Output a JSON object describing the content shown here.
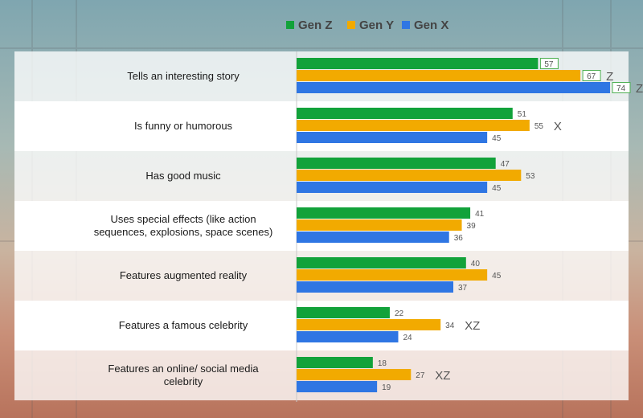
{
  "colors": {
    "gen_z": "#12a23a",
    "gen_y": "#f2aa00",
    "gen_x": "#2f76e3",
    "band": "#ffffff",
    "highlight_box": "#4caf50"
  },
  "chart_data": {
    "type": "bar",
    "orientation": "horizontal",
    "title": "",
    "xlabel": "",
    "ylabel": "",
    "xlim": [
      0,
      80
    ],
    "grid": false,
    "legend_position": "top-right",
    "categories": [
      [
        "Tells an interesting story"
      ],
      [
        "Is funny or humorous"
      ],
      [
        "Has good music"
      ],
      [
        "Uses special effects (like action",
        "sequences, explosions, space scenes)"
      ],
      [
        "Features augmented reality"
      ],
      [
        "Features a famous celebrity"
      ],
      [
        "Features an online/ social media",
        "celebrity"
      ]
    ],
    "series": [
      {
        "name": "Gen Z",
        "color_key": "gen_z",
        "values": [
          57,
          51,
          47,
          41,
          40,
          22,
          18
        ]
      },
      {
        "name": "Gen Y",
        "color_key": "gen_y",
        "values": [
          67,
          55,
          53,
          39,
          45,
          34,
          27
        ]
      },
      {
        "name": "Gen X",
        "color_key": "gen_x",
        "values": [
          74,
          45,
          45,
          36,
          37,
          24,
          19
        ]
      }
    ],
    "boxed_values": [
      [
        true,
        true,
        true
      ],
      [
        false,
        false,
        false
      ],
      [
        false,
        false,
        false
      ],
      [
        false,
        false,
        false
      ],
      [
        false,
        false,
        false
      ],
      [
        false,
        false,
        false
      ],
      [
        false,
        false,
        false
      ]
    ],
    "significance_letters": [
      {
        "row": 0,
        "series": 1,
        "text": "Z"
      },
      {
        "row": 0,
        "series": 2,
        "text": "Z"
      },
      {
        "row": 1,
        "series": 1,
        "text": "X"
      },
      {
        "row": 5,
        "series": 1,
        "text": "XZ"
      },
      {
        "row": 6,
        "series": 1,
        "text": "XZ"
      }
    ]
  }
}
